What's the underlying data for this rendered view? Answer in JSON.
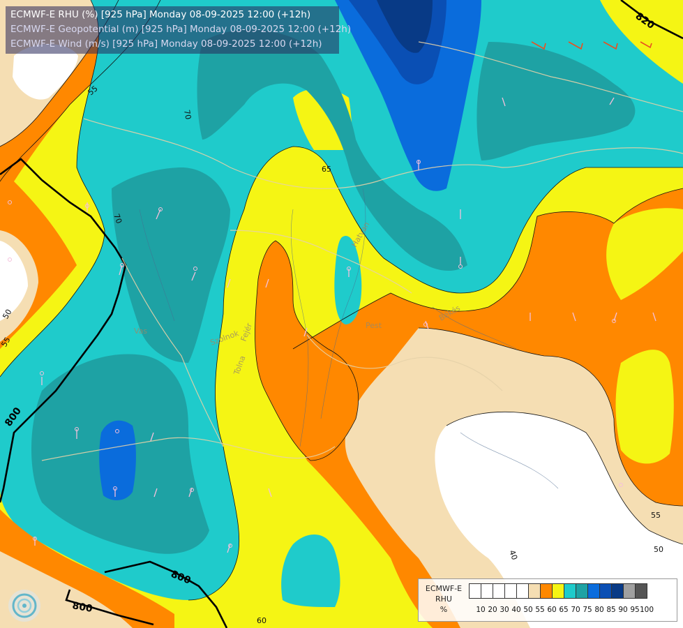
{
  "header": {
    "line1": "ECMWF-E RHU (%) [925 hPa] Monday 08-09-2025 12:00 (+12h)",
    "line2": "ECMWF-E Geopotential (m) [925 hPa] Monday 08-09-2025 12:00 (+12h)",
    "line3": "ECMWF-E Wind (m/s) [925 hPa] Monday 08-09-2025 12:00 (+12h)"
  },
  "legend": {
    "title_line1": "ECMWF-E",
    "title_line2": "RHU",
    "unit": "%",
    "swatches": [
      "#ffffff",
      "#ffffff",
      "#ffffff",
      "#ffffff",
      "#ffffff",
      "#f5deb3",
      "#ff8800",
      "#f5f514",
      "#1fcbcb",
      "#1ea2a4",
      "#0a6cdc",
      "#0a4fb4",
      "#083a86",
      "#a0a0a0",
      "#555555"
    ],
    "ticks": [
      "10",
      "20",
      "30",
      "40",
      "50",
      "55",
      "60",
      "65",
      "70",
      "75",
      "80",
      "85",
      "90",
      "95",
      "100"
    ]
  },
  "map": {
    "place_labels": [
      "Hatvan",
      "Békés",
      "Szolnok",
      "Pest",
      "Vas",
      "Tolna",
      "Fejér",
      "Győr"
    ],
    "rhu_contour_labels": [
      "55",
      "50",
      "55",
      "70",
      "70",
      "65",
      "60",
      "55",
      "50",
      "40",
      "60"
    ],
    "geopotential_labels": [
      "820",
      "800",
      "800",
      "800"
    ]
  }
}
